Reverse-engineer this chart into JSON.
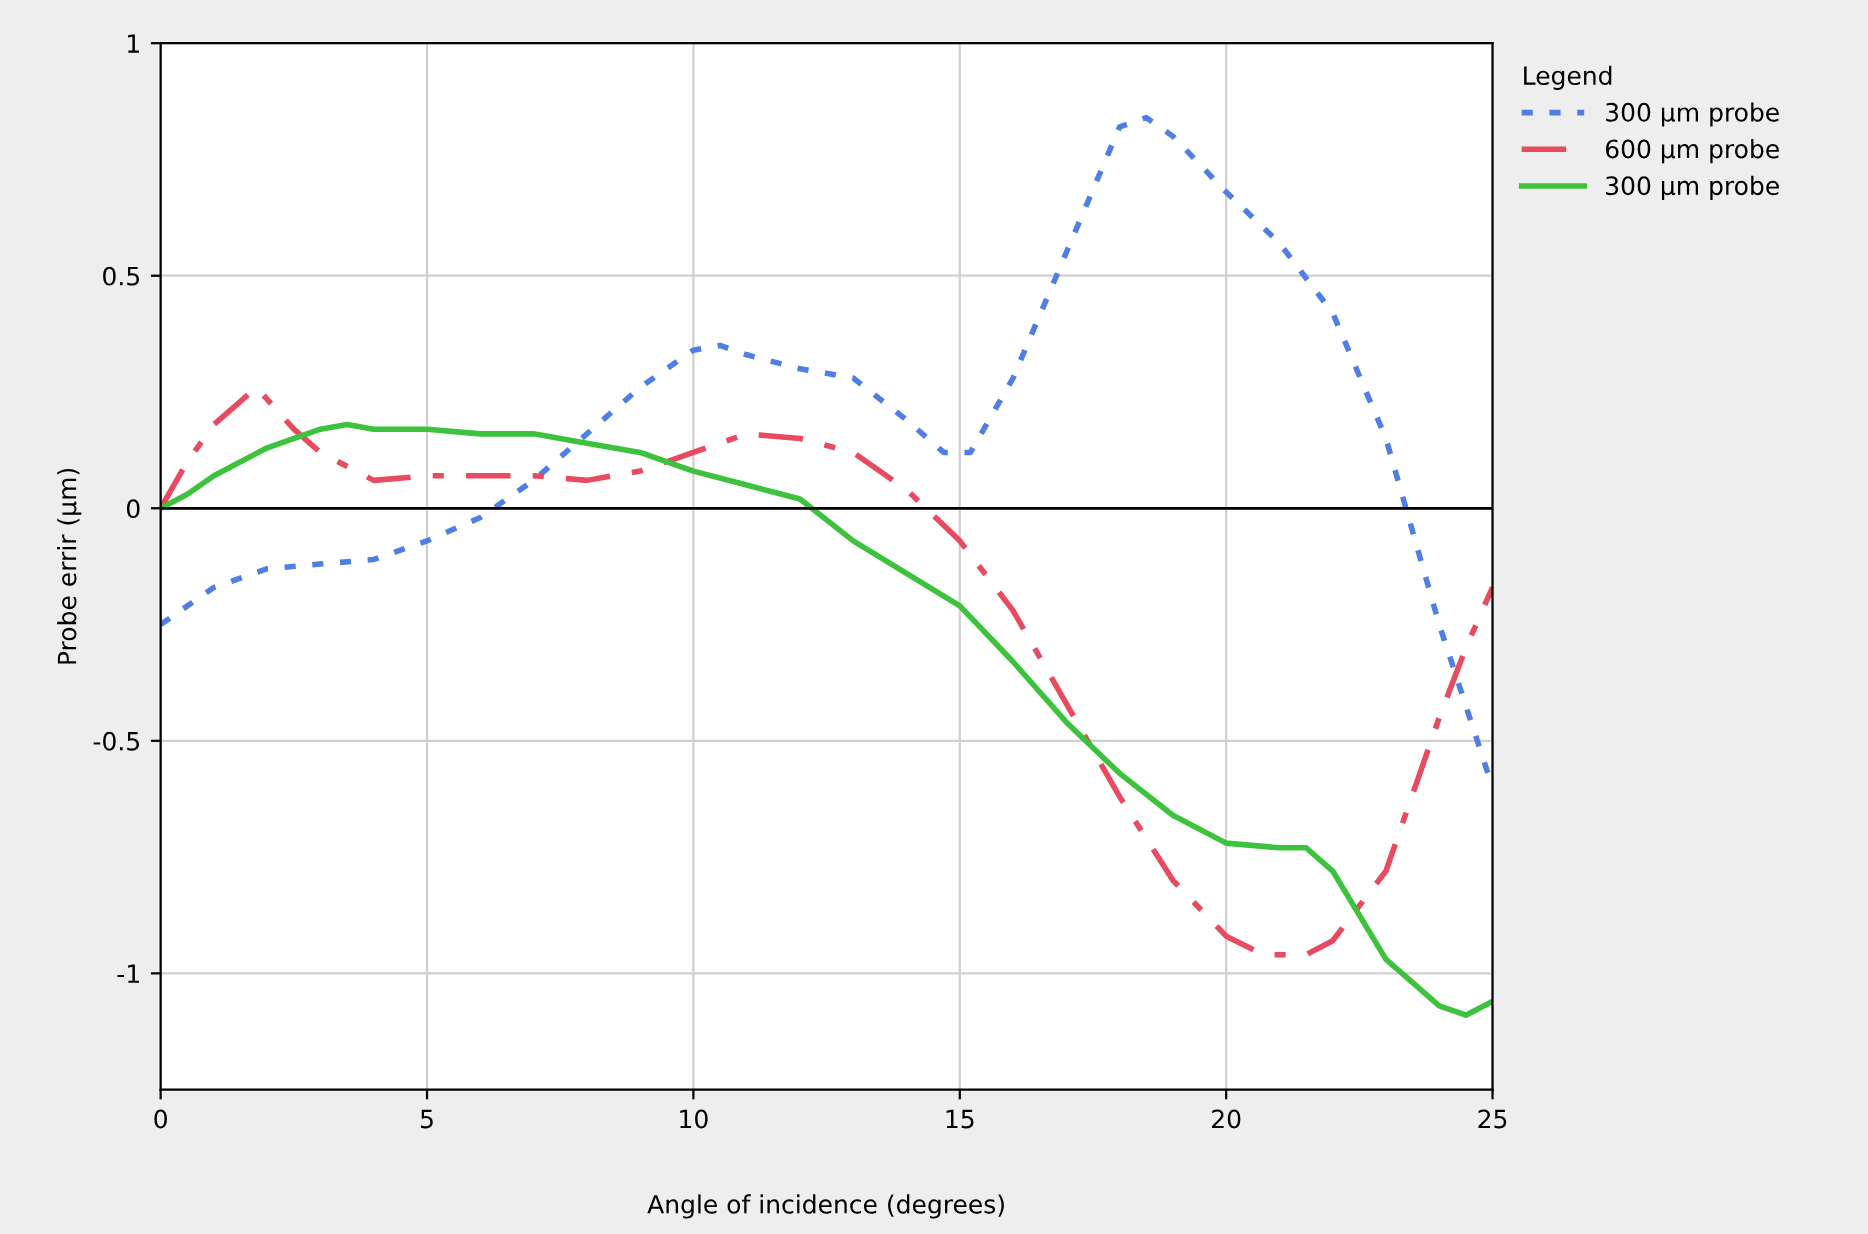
{
  "chart_data": {
    "type": "line",
    "xlabel": "Angle of incidence (degrees)",
    "ylabel": "Probe errir (µm)",
    "legend_title": "Legend",
    "legend": "right",
    "grid": true,
    "xlim": [
      0,
      25
    ],
    "xticks": [
      0,
      5,
      10,
      15,
      20,
      25
    ],
    "ylim": [
      -1.25,
      1
    ],
    "yticks": [
      {
        "value": -1,
        "label": "-1"
      },
      {
        "value": -0.5,
        "label": "-0.5"
      },
      0,
      0.5,
      1
    ],
    "ref_lines": [
      {
        "axis": "y",
        "value": 0,
        "color": "#000000",
        "line_style": "solid"
      }
    ],
    "series": [
      {
        "name": "300 µm probe",
        "color": "#4f7fe6",
        "line_style": "dotted",
        "x": [
          0,
          1,
          2,
          3,
          4,
          5,
          6,
          7,
          8,
          9,
          10,
          10.5,
          11,
          12,
          13,
          14,
          14.7,
          15.2,
          16,
          17,
          18,
          18.5,
          19,
          20,
          21,
          22,
          23,
          23.5,
          24,
          25
        ],
        "values": [
          -0.25,
          -0.17,
          -0.13,
          -0.12,
          -0.11,
          -0.07,
          -0.02,
          0.06,
          0.16,
          0.26,
          0.34,
          0.35,
          0.33,
          0.3,
          0.28,
          0.19,
          0.12,
          0.12,
          0.28,
          0.55,
          0.82,
          0.84,
          0.8,
          0.68,
          0.57,
          0.42,
          0.15,
          -0.05,
          -0.25,
          -0.6
        ]
      },
      {
        "name": "600 µm probe",
        "color": "#e84a5f",
        "line_style": "dashed",
        "x": [
          0,
          0.5,
          1,
          1.8,
          2.5,
          3,
          4,
          5,
          6,
          7,
          8,
          9,
          10,
          11,
          12,
          13,
          14,
          15,
          16,
          17,
          18,
          19,
          20,
          20.7,
          21.5,
          22,
          23,
          24,
          24.5,
          25
        ],
        "values": [
          0,
          0.1,
          0.18,
          0.26,
          0.17,
          0.12,
          0.06,
          0.07,
          0.07,
          0.07,
          0.06,
          0.08,
          0.12,
          0.16,
          0.15,
          0.12,
          0.04,
          -0.07,
          -0.22,
          -0.42,
          -0.62,
          -0.8,
          -0.92,
          -0.96,
          -0.96,
          -0.93,
          -0.78,
          -0.45,
          -0.3,
          -0.17
        ]
      },
      {
        "name": "300 µm probe",
        "color": "#3cc23c",
        "line_style": "solid",
        "x": [
          0,
          0.5,
          1,
          2,
          3,
          3.5,
          4,
          5,
          6,
          7,
          8,
          9,
          10,
          11,
          12,
          13,
          14,
          15,
          16,
          17,
          18,
          19,
          20,
          21,
          21.5,
          22,
          23,
          24,
          24.5,
          25
        ],
        "values": [
          0,
          0.03,
          0.07,
          0.13,
          0.17,
          0.18,
          0.17,
          0.17,
          0.16,
          0.16,
          0.14,
          0.12,
          0.08,
          0.05,
          0.02,
          -0.07,
          -0.14,
          -0.21,
          -0.33,
          -0.46,
          -0.57,
          -0.66,
          -0.72,
          -0.73,
          -0.73,
          -0.78,
          -0.97,
          -1.07,
          -1.09,
          -1.06
        ]
      }
    ]
  }
}
